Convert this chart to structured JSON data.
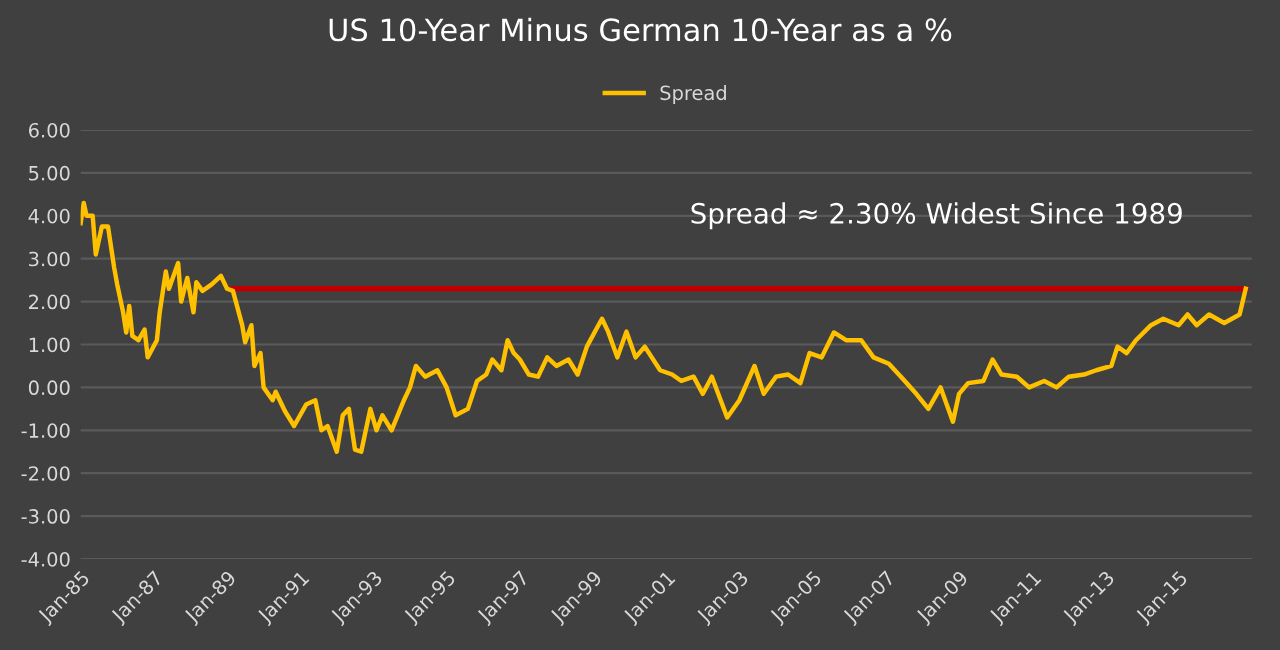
{
  "chart_data": {
    "type": "line",
    "title": "US 10-Year Minus German 10-Year as a %",
    "series": [
      {
        "name": "Spread",
        "color": "#ffc000",
        "x": [
          "1985-01",
          "1985-02",
          "1985-03",
          "1985-05",
          "1985-06",
          "1985-08",
          "1985-10",
          "1985-12",
          "1986-01",
          "1986-03",
          "1986-04",
          "1986-05",
          "1986-06",
          "1986-08",
          "1986-10",
          "1986-11",
          "1987-02",
          "1987-03",
          "1987-05",
          "1987-06",
          "1987-09",
          "1987-10",
          "1987-12",
          "1988-02",
          "1988-03",
          "1988-05",
          "1988-08",
          "1988-11",
          "1989-01",
          "1989-03",
          "1989-06",
          "1989-07",
          "1989-09",
          "1989-10",
          "1989-12",
          "1990-01",
          "1990-04",
          "1990-05",
          "1990-08",
          "1990-11",
          "1991-03",
          "1991-06",
          "1991-08",
          "1991-10",
          "1992-01",
          "1992-03",
          "1992-05",
          "1992-07",
          "1992-09",
          "1992-12",
          "1993-02",
          "1993-04",
          "1993-07",
          "1993-11",
          "1994-01",
          "1994-03",
          "1994-06",
          "1994-10",
          "1995-01",
          "1995-04",
          "1995-08",
          "1995-11",
          "1996-02",
          "1996-04",
          "1996-07",
          "1996-09",
          "1996-11",
          "1997-01",
          "1997-04",
          "1997-07",
          "1997-10",
          "1998-01",
          "1998-05",
          "1998-08",
          "1998-11",
          "1999-02",
          "1999-04",
          "1999-06",
          "1999-09",
          "1999-12",
          "2000-03",
          "2000-06",
          "2000-11",
          "2001-03",
          "2001-06",
          "2001-10",
          "2002-01",
          "2002-04",
          "2002-09",
          "2003-01",
          "2003-06",
          "2003-09",
          "2004-01",
          "2004-05",
          "2004-09",
          "2004-12",
          "2005-04",
          "2005-08",
          "2005-12",
          "2006-05",
          "2006-09",
          "2007-02",
          "2007-06",
          "2007-11",
          "2008-03",
          "2008-07",
          "2008-11",
          "2009-01",
          "2009-04",
          "2009-09",
          "2009-12",
          "2010-03",
          "2010-08",
          "2010-12",
          "2011-05",
          "2011-09",
          "2012-01",
          "2012-06",
          "2012-10",
          "2013-03",
          "2013-05",
          "2013-08",
          "2013-11",
          "2014-04",
          "2014-08",
          "2015-01",
          "2015-04",
          "2015-07",
          "2015-11",
          "2016-04",
          "2016-09",
          "2016-11"
        ],
        "values": [
          3.83,
          4.3,
          4.0,
          4.0,
          3.1,
          3.75,
          3.75,
          2.8,
          2.4,
          1.75,
          1.28,
          1.9,
          1.2,
          1.1,
          1.35,
          0.7,
          1.1,
          1.75,
          2.7,
          2.3,
          2.9,
          2.0,
          2.55,
          1.75,
          2.45,
          2.25,
          2.4,
          2.6,
          2.3,
          2.25,
          1.45,
          1.05,
          1.45,
          0.5,
          0.8,
          0.0,
          -0.3,
          -0.1,
          -0.55,
          -0.9,
          -0.4,
          -0.3,
          -1.0,
          -0.9,
          -1.5,
          -0.65,
          -0.5,
          -1.45,
          -1.5,
          -0.5,
          -1.0,
          -0.65,
          -1.0,
          -0.3,
          0.0,
          0.5,
          0.25,
          0.4,
          0.0,
          -0.65,
          -0.5,
          0.15,
          0.3,
          0.65,
          0.4,
          1.1,
          0.8,
          0.65,
          0.3,
          0.25,
          0.7,
          0.5,
          0.65,
          0.3,
          0.95,
          1.35,
          1.6,
          1.3,
          0.7,
          1.3,
          0.7,
          0.95,
          0.4,
          0.3,
          0.15,
          0.25,
          -0.15,
          0.25,
          -0.7,
          -0.3,
          0.5,
          -0.15,
          0.25,
          0.3,
          0.1,
          0.8,
          0.7,
          1.28,
          1.1,
          1.1,
          0.7,
          0.55,
          0.25,
          -0.15,
          -0.5,
          0.0,
          -0.8,
          -0.15,
          0.1,
          0.15,
          0.65,
          0.3,
          0.25,
          0.0,
          0.15,
          0.0,
          0.25,
          0.3,
          0.4,
          0.5,
          0.95,
          0.8,
          1.1,
          1.45,
          1.6,
          1.45,
          1.7,
          1.45,
          1.7,
          1.5,
          1.7,
          2.3
        ]
      },
      {
        "color": "#c00000",
        "x": [
          "1989-03",
          "2016-11"
        ],
        "values": [
          2.3,
          2.3
        ]
      }
    ],
    "xlim": [
      "1985-01",
      "2017-01"
    ],
    "xticks": [
      {
        "value": "1985-01",
        "label": "Jan-85"
      },
      {
        "value": "1987-01",
        "label": "Jan-87"
      },
      {
        "value": "1989-01",
        "label": "Jan-89"
      },
      {
        "value": "1991-01",
        "label": "Jan-91"
      },
      {
        "value": "1993-01",
        "label": "Jan-93"
      },
      {
        "value": "1995-01",
        "label": "Jan-95"
      },
      {
        "value": "1997-01",
        "label": "Jan-97"
      },
      {
        "value": "1999-01",
        "label": "Jan-99"
      },
      {
        "value": "2001-01",
        "label": "Jan-01"
      },
      {
        "value": "2003-01",
        "label": "Jan-03"
      },
      {
        "value": "2005-01",
        "label": "Jan-05"
      },
      {
        "value": "2007-01",
        "label": "Jan-07"
      },
      {
        "value": "2009-01",
        "label": "Jan-09"
      },
      {
        "value": "2011-01",
        "label": "Jan-11"
      },
      {
        "value": "2013-01",
        "label": "Jan-13"
      },
      {
        "value": "2015-01",
        "label": "Jan-15"
      }
    ],
    "ylim": [
      -4,
      6
    ],
    "yticks": [
      {
        "value": -4,
        "label": "-4.00"
      },
      {
        "value": -3,
        "label": "-3.00"
      },
      {
        "value": -2,
        "label": "-2.00"
      },
      {
        "value": -1,
        "label": "-1.00"
      },
      {
        "value": 0,
        "label": "0.00"
      },
      {
        "value": 1,
        "label": "1.00"
      },
      {
        "value": 2,
        "label": "2.00"
      },
      {
        "value": 3,
        "label": "3.00"
      },
      {
        "value": 4,
        "label": "4.00"
      },
      {
        "value": 5,
        "label": "5.00"
      },
      {
        "value": 6,
        "label": "6.00"
      }
    ],
    "annotations": [
      "Spread ≈ 2.30% Widest Since 1989"
    ],
    "grid": "y",
    "legend": "top",
    "marker": "none",
    "line_style": "solid"
  }
}
